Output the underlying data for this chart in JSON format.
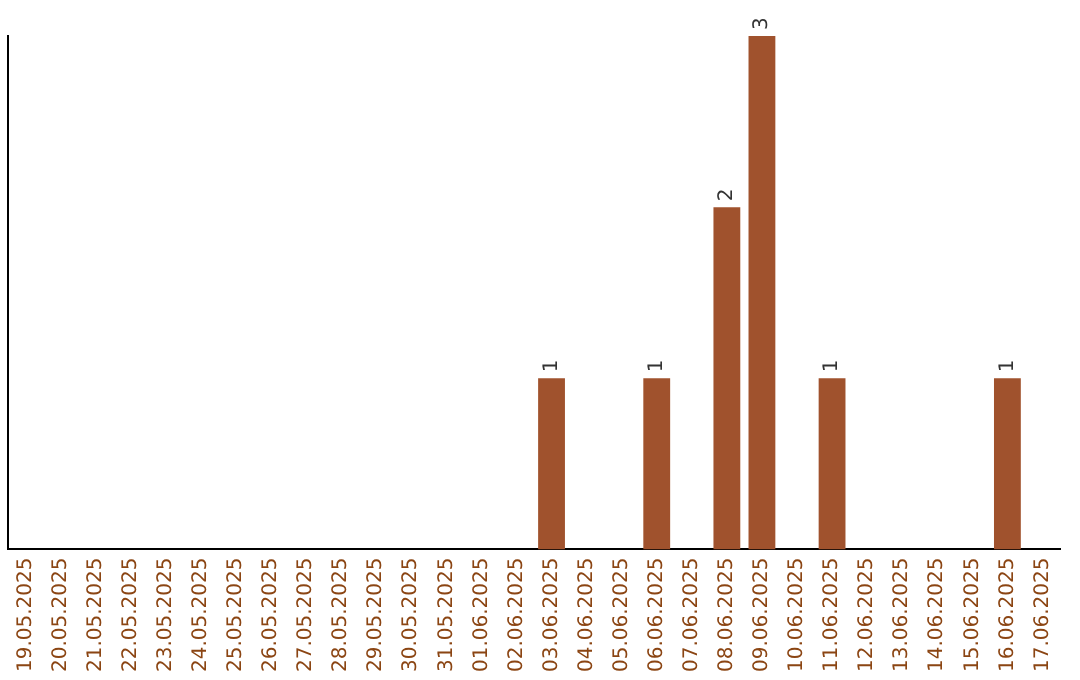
{
  "chart_data": {
    "type": "bar",
    "categories": [
      "19.05.2025",
      "20.05.2025",
      "21.05.2025",
      "22.05.2025",
      "23.05.2025",
      "24.05.2025",
      "25.05.2025",
      "26.05.2025",
      "27.05.2025",
      "28.05.2025",
      "29.05.2025",
      "30.05.2025",
      "31.05.2025",
      "01.06.2025",
      "02.06.2025",
      "03.06.2025",
      "04.06.2025",
      "05.06.2025",
      "06.06.2025",
      "07.06.2025",
      "08.06.2025",
      "09.06.2025",
      "10.06.2025",
      "11.06.2025",
      "12.06.2025",
      "13.06.2025",
      "14.06.2025",
      "15.06.2025",
      "16.06.2025",
      "17.06.2025"
    ],
    "values": [
      null,
      null,
      null,
      null,
      null,
      null,
      null,
      null,
      null,
      null,
      null,
      null,
      null,
      null,
      null,
      1,
      null,
      null,
      1,
      null,
      2,
      3,
      null,
      1,
      null,
      null,
      null,
      null,
      1,
      null
    ],
    "data_labels": true,
    "color": "#a0522d",
    "grid": false,
    "legend": false,
    "tick_labels": "x"
  }
}
